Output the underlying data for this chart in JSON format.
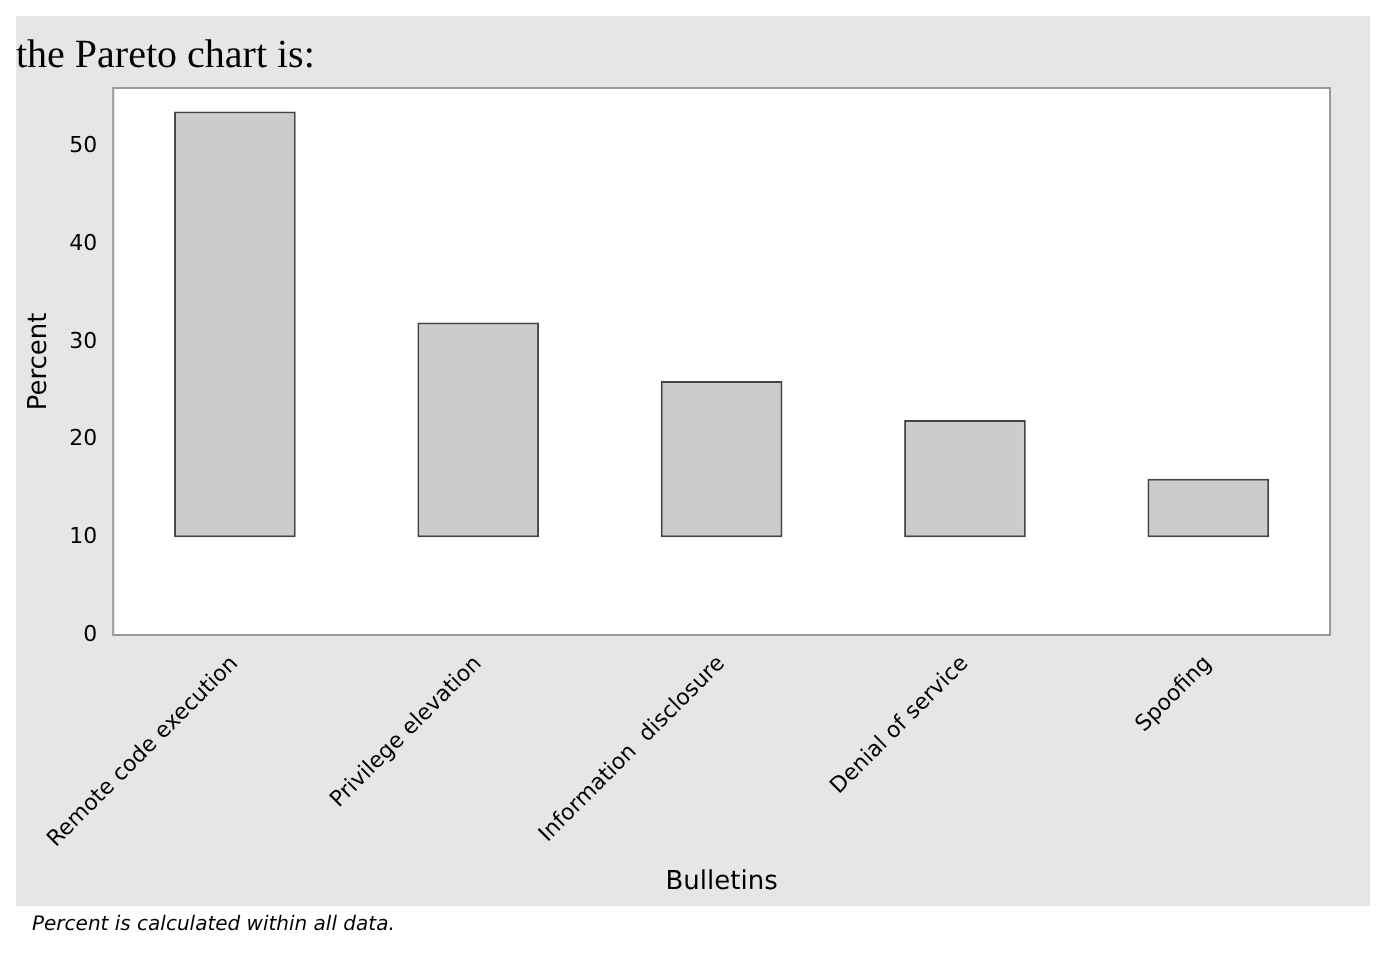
{
  "chart_data": {
    "type": "bar",
    "title": "the Pareto chart is:",
    "xlabel": "Bulletins",
    "ylabel": "Percent",
    "categories": [
      "Remote code execution",
      "Privilege elevation",
      "Information  disclosure",
      "Denial of service",
      "Spoofing"
    ],
    "values": [
      43.6,
      22,
      16,
      12,
      6
    ],
    "base": [
      10,
      10,
      10,
      10,
      10
    ],
    "color": "#cccccc",
    "ylim": [
      0,
      56
    ],
    "yticks": [
      0,
      10,
      20,
      30,
      40,
      50
    ],
    "grid": false,
    "legend": false,
    "annotations": [
      "Percent is calculated within all data."
    ]
  }
}
